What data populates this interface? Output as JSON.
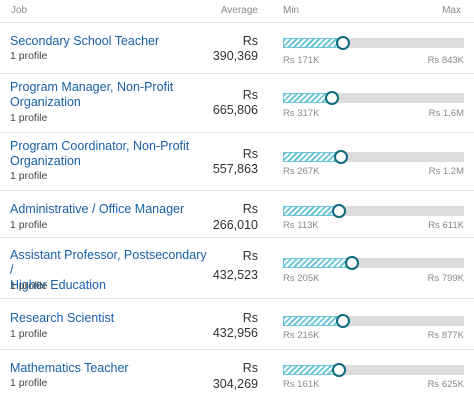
{
  "header": {
    "job": "Job",
    "average": "Average",
    "min": "Min",
    "max": "Max"
  },
  "jobs": [
    {
      "title_lines": [
        "Secondary School Teacher"
      ],
      "profiles": "1 profile",
      "currency": "Rs",
      "average": "390,369",
      "min_label": "Rs 171K",
      "max_label": "Rs 843K",
      "position": 0.33
    },
    {
      "title_lines": [
        "Program Manager, Non-Profit",
        "Organization"
      ],
      "profiles": "1 profile",
      "currency": "Rs",
      "average": "665,806",
      "min_label": "Rs 317K",
      "max_label": "Rs 1.6M",
      "position": 0.27
    },
    {
      "title_lines": [
        "Program Coordinator, Non-Profit",
        "Organization"
      ],
      "profiles": "1 profile",
      "currency": "Rs",
      "average": "557,863",
      "min_label": "Rs 267K",
      "max_label": "Rs 1.2M",
      "position": 0.32
    },
    {
      "title_lines": [
        "Administrative / Office Manager"
      ],
      "profiles": "1 profile",
      "currency": "Rs",
      "average": "266,010",
      "min_label": "Rs 113K",
      "max_label": "Rs 611K",
      "position": 0.31
    },
    {
      "title_lines": [
        "Assistant Professor, Postsecondary /",
        "Higher Education"
      ],
      "profiles": "1 profile",
      "currency": "Rs",
      "average": "432,523",
      "min_label": "Rs 205K",
      "max_label": "Rs 799K",
      "position": 0.38
    },
    {
      "title_lines": [
        "Research Scientist"
      ],
      "profiles": "1 profile",
      "currency": "Rs",
      "average": "432,956",
      "min_label": "Rs 216K",
      "max_label": "Rs 877K",
      "position": 0.33
    },
    {
      "title_lines": [
        "Mathematics Teacher"
      ],
      "profiles": "1 profile",
      "currency": "Rs",
      "average": "304,269",
      "min_label": "Rs 161K",
      "max_label": "Rs 625K",
      "position": 0.31
    }
  ],
  "colors": {
    "link": "#1860a8",
    "marker": "#0e6a80",
    "hatch": "#6ec6d8",
    "track": "#dcdcdc"
  }
}
